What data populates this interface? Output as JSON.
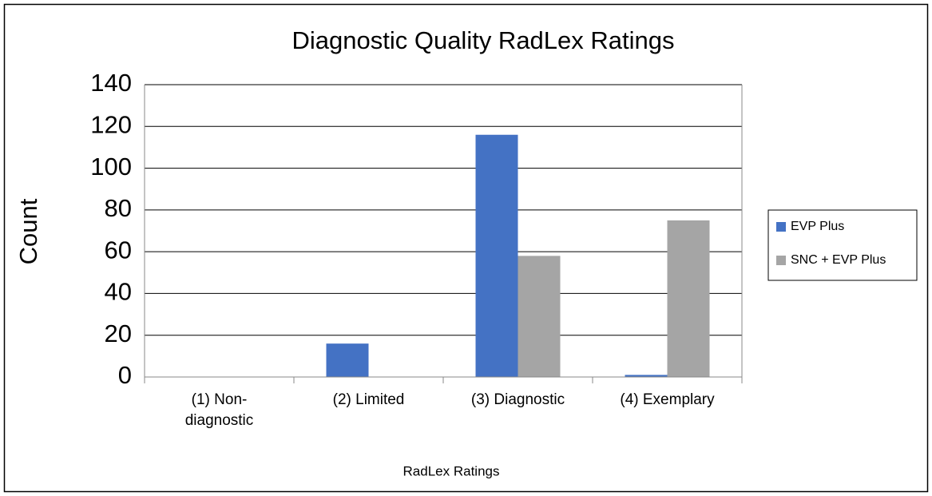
{
  "chart_data": {
    "type": "bar",
    "title": "Diagnostic Quality RadLex Ratings",
    "x_label": "RadLex Ratings",
    "y_label": "Count",
    "categories": [
      "(1) Non-diagnostic",
      "(2) Limited",
      "(3) Diagnostic",
      "(4) Exemplary"
    ],
    "series": [
      {
        "name": "EVP Plus",
        "color": "#4472c4",
        "values": [
          0,
          16,
          116,
          1
        ]
      },
      {
        "name": "SNC + EVP Plus",
        "color": "#a5a5a5",
        "values": [
          0,
          0,
          58,
          75
        ]
      }
    ],
    "ylim": [
      0,
      140
    ],
    "yticks": [
      0,
      20,
      40,
      60,
      80,
      100,
      120,
      140
    ],
    "grid": true,
    "legend": "right"
  }
}
